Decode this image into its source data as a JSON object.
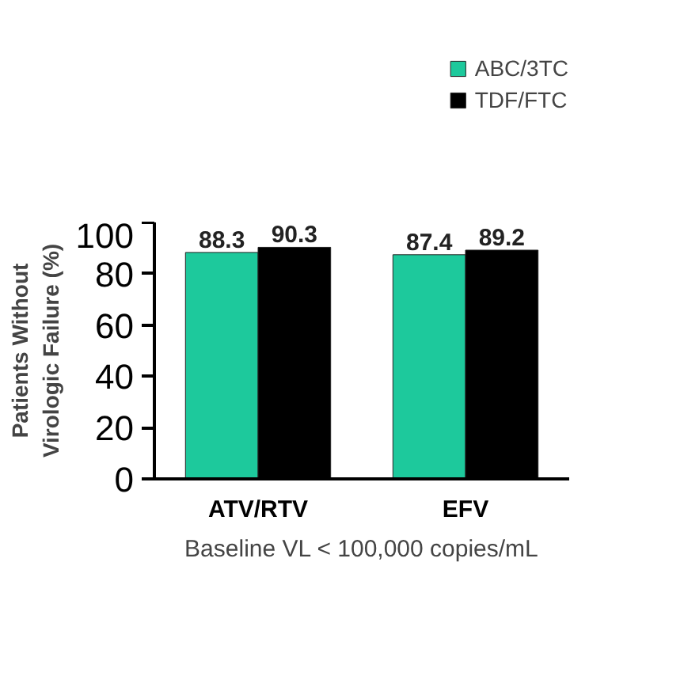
{
  "chart_data": {
    "type": "bar",
    "categories": [
      "ATV/RTV",
      "EFV"
    ],
    "series": [
      {
        "name": "ABC/3TC",
        "color": "#1dc99c",
        "values": [
          88.3,
          87.4
        ]
      },
      {
        "name": "TDF/FTC",
        "color": "#000000",
        "values": [
          90.3,
          89.2
        ]
      }
    ],
    "ylim": [
      0,
      100
    ],
    "yticks": [
      0,
      20,
      40,
      60,
      80,
      100
    ],
    "ylabel": "Patients Without Virologic Failure (%)",
    "xlabel": "Baseline VL < 100,000 copies/mL",
    "data_labels": true,
    "legend": "top right",
    "grid": false
  }
}
